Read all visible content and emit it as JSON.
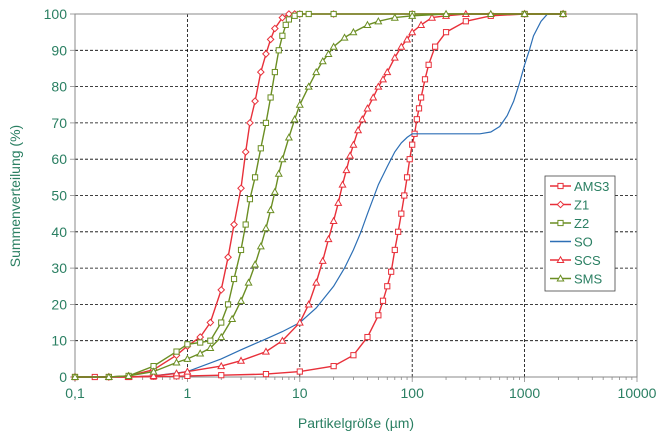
{
  "chart_data": {
    "type": "line",
    "title": "",
    "xlabel": "Partikelgröße (µm)",
    "ylabel": "Summenverteilung (%)",
    "x_scale": "log",
    "xlim": [
      0.1,
      10000
    ],
    "ylim": [
      0,
      100
    ],
    "x_ticks": [
      "0,1",
      "1",
      "10",
      "100",
      "1000",
      "10000"
    ],
    "y_ticks": [
      "0",
      "10",
      "20",
      "30",
      "40",
      "50",
      "60",
      "70",
      "80",
      "90",
      "100"
    ],
    "grid": "dashed",
    "legend_position": "right",
    "series": [
      {
        "name": "AMS3",
        "color": "#e8303a",
        "marker": "square",
        "x": [
          0.1,
          0.15,
          0.2,
          0.3,
          0.5,
          0.8,
          1,
          2,
          5,
          10,
          20,
          30,
          40,
          50,
          55,
          60,
          65,
          70,
          75,
          80,
          85,
          90,
          95,
          100,
          105,
          110,
          115,
          120,
          130,
          140,
          160,
          200,
          300,
          500,
          1000,
          2200
        ],
        "y": [
          0,
          0,
          0,
          0,
          0.1,
          0.2,
          0.3,
          0.5,
          0.8,
          1.5,
          3,
          6,
          11,
          17,
          21,
          25,
          29,
          35,
          40,
          45,
          50,
          55,
          60,
          64,
          67,
          71,
          74,
          77,
          82,
          86,
          91,
          95,
          98,
          99.5,
          100,
          100
        ]
      },
      {
        "name": "Z1",
        "color": "#e8303a",
        "marker": "diamond",
        "x": [
          0.1,
          0.2,
          0.3,
          0.5,
          0.8,
          1,
          1.3,
          1.6,
          2,
          2.3,
          2.6,
          3,
          3.3,
          3.6,
          4,
          4.5,
          5,
          5.5,
          6,
          7,
          8,
          9,
          10,
          20,
          100,
          1000,
          2200
        ],
        "y": [
          0,
          0,
          0.3,
          2,
          6,
          8.5,
          11,
          15,
          24,
          33,
          42,
          52,
          62,
          70,
          76,
          84,
          89,
          93,
          96,
          99,
          100,
          100,
          100,
          100,
          100,
          100,
          100
        ]
      },
      {
        "name": "Z2",
        "color": "#6b8e23",
        "marker": "square",
        "x": [
          0.1,
          0.2,
          0.3,
          0.5,
          0.8,
          1,
          1.3,
          1.6,
          2,
          2.3,
          2.6,
          3,
          3.3,
          3.6,
          4,
          4.5,
          5,
          5.5,
          6,
          6.5,
          7,
          7.5,
          8,
          9,
          10,
          12,
          20,
          100,
          1000,
          2200
        ],
        "y": [
          0,
          0,
          0.3,
          3,
          7,
          9,
          9.5,
          10,
          15,
          20,
          27,
          35,
          42,
          49,
          55,
          63,
          70,
          77,
          84,
          90,
          94,
          97,
          98.5,
          99.5,
          100,
          100,
          100,
          100,
          100,
          100
        ]
      },
      {
        "name": "SO",
        "color": "#2d6fb5",
        "marker": "none",
        "x": [
          0.1,
          0.2,
          0.3,
          0.5,
          1,
          2,
          3,
          5,
          7,
          10,
          14,
          20,
          25,
          30,
          35,
          40,
          50,
          60,
          70,
          80,
          90,
          100,
          120,
          150,
          200,
          300,
          400,
          500,
          600,
          700,
          800,
          900,
          1000,
          1100,
          1200,
          1400,
          1600,
          1800,
          2000
        ],
        "y": [
          0,
          0,
          0,
          0.3,
          1.5,
          5,
          7.5,
          10.5,
          12.5,
          15,
          19,
          25,
          30,
          35,
          40,
          45,
          53,
          58,
          62,
          64.5,
          66,
          67,
          67,
          67,
          67,
          67,
          67,
          67.5,
          69,
          72,
          76,
          81,
          86,
          90,
          94,
          98,
          100,
          100,
          100
        ]
      },
      {
        "name": "SCS",
        "color": "#e8303a",
        "marker": "triangle",
        "x": [
          0.1,
          0.2,
          0.3,
          0.5,
          0.8,
          1,
          2,
          3,
          5,
          7,
          10,
          12,
          14,
          16,
          18,
          20,
          22,
          24,
          26,
          28,
          30,
          33,
          36,
          40,
          45,
          50,
          55,
          60,
          70,
          80,
          90,
          100,
          120,
          150,
          200,
          300,
          1000,
          2200
        ],
        "y": [
          0,
          0,
          0,
          0.3,
          1,
          1.5,
          3,
          4.5,
          7,
          10,
          15,
          20,
          26,
          32,
          38,
          43,
          48,
          53,
          57,
          61,
          64,
          68,
          71,
          74,
          77,
          80,
          82,
          84,
          88,
          91,
          93,
          95,
          97,
          99,
          99.5,
          100,
          100,
          100
        ]
      },
      {
        "name": "SMS",
        "color": "#6b8e23",
        "marker": "triangle",
        "x": [
          0.1,
          0.2,
          0.3,
          0.5,
          0.8,
          1,
          1.3,
          1.6,
          2,
          2.5,
          3,
          3.5,
          4,
          4.5,
          5,
          5.5,
          6,
          6.5,
          7,
          8,
          9,
          10,
          12,
          14,
          16,
          18,
          20,
          25,
          30,
          40,
          50,
          70,
          100,
          200,
          500,
          1000,
          2200
        ],
        "y": [
          0,
          0,
          0.3,
          1.5,
          4,
          5,
          6.5,
          8,
          11,
          16,
          21,
          26,
          31,
          36,
          41,
          46,
          51,
          56,
          60,
          66,
          71,
          75,
          80,
          84,
          87,
          89,
          91,
          93.5,
          95,
          97,
          98,
          99,
          99.5,
          100,
          100,
          100,
          100
        ]
      }
    ]
  }
}
